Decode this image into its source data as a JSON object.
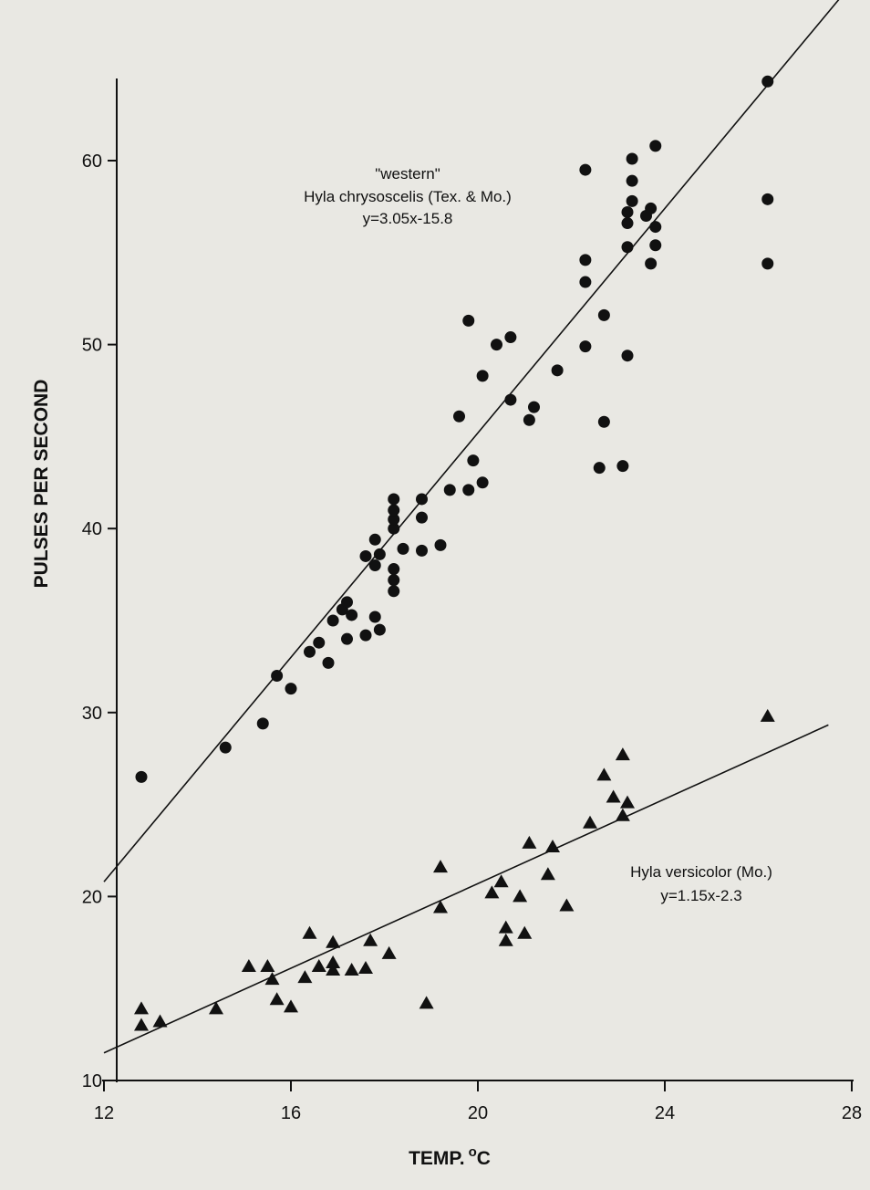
{
  "chart_data": {
    "type": "scatter",
    "title": "",
    "xlabel": "TEMP.",
    "xlabel_unit_sup": "o",
    "xlabel_unit": "C",
    "ylabel": "PULSES PER SECOND",
    "xlim": [
      12,
      28
    ],
    "ylim": [
      10,
      64
    ],
    "x_ticks": [
      12,
      16,
      20,
      24,
      28
    ],
    "y_ticks": [
      10,
      20,
      30,
      40,
      50,
      60
    ],
    "grid": false,
    "colors": {
      "marker": "#111111",
      "line": "#111111",
      "background": "#e9e8e3"
    },
    "annotations": {
      "western": {
        "line1": "\"western\"",
        "line2": "Hyla chrysoscelis  (Tex. & Mo.)",
        "line3": "y=3.05x-15.8"
      },
      "versicolor": {
        "line1": "Hyla versicolor (Mo.)",
        "line2": "y=1.15x-2.3"
      }
    },
    "series": [
      {
        "name": "Hyla chrysoscelis (Tex. & Mo.)",
        "marker": "circle",
        "regression": {
          "slope": 3.05,
          "intercept": -15.8,
          "x_range": [
            12,
            27.9
          ]
        },
        "points": [
          [
            12.8,
            26.5
          ],
          [
            14.6,
            28.1
          ],
          [
            15.4,
            29.4
          ],
          [
            15.7,
            32.0
          ],
          [
            16.0,
            31.3
          ],
          [
            16.4,
            33.3
          ],
          [
            16.6,
            33.8
          ],
          [
            16.8,
            32.7
          ],
          [
            16.9,
            35.0
          ],
          [
            17.1,
            35.6
          ],
          [
            17.2,
            36.0
          ],
          [
            17.2,
            34.0
          ],
          [
            17.3,
            35.3
          ],
          [
            17.6,
            38.5
          ],
          [
            17.6,
            34.2
          ],
          [
            17.8,
            35.2
          ],
          [
            17.8,
            38.0
          ],
          [
            17.8,
            39.4
          ],
          [
            17.9,
            34.5
          ],
          [
            17.9,
            38.6
          ],
          [
            18.2,
            37.8
          ],
          [
            18.2,
            37.2
          ],
          [
            18.2,
            36.6
          ],
          [
            18.2,
            40.0
          ],
          [
            18.2,
            40.5
          ],
          [
            18.2,
            41.0
          ],
          [
            18.2,
            41.6
          ],
          [
            18.4,
            38.9
          ],
          [
            18.8,
            38.8
          ],
          [
            18.8,
            40.6
          ],
          [
            18.8,
            41.6
          ],
          [
            19.2,
            39.1
          ],
          [
            19.4,
            42.1
          ],
          [
            19.6,
            46.1
          ],
          [
            19.8,
            51.3
          ],
          [
            19.8,
            42.1
          ],
          [
            19.9,
            43.7
          ],
          [
            20.1,
            48.3
          ],
          [
            20.1,
            42.5
          ],
          [
            20.4,
            50.0
          ],
          [
            20.7,
            50.4
          ],
          [
            20.7,
            47.0
          ],
          [
            21.1,
            45.9
          ],
          [
            21.2,
            46.6
          ],
          [
            21.7,
            48.6
          ],
          [
            22.3,
            59.5
          ],
          [
            22.3,
            54.6
          ],
          [
            22.3,
            53.4
          ],
          [
            22.3,
            49.9
          ],
          [
            22.6,
            43.3
          ],
          [
            22.7,
            51.6
          ],
          [
            22.7,
            45.8
          ],
          [
            23.1,
            43.4
          ],
          [
            23.2,
            49.4
          ],
          [
            23.2,
            55.3
          ],
          [
            23.2,
            56.6
          ],
          [
            23.2,
            57.2
          ],
          [
            23.3,
            57.8
          ],
          [
            23.3,
            58.9
          ],
          [
            23.3,
            60.1
          ],
          [
            23.6,
            57.0
          ],
          [
            23.7,
            57.4
          ],
          [
            23.7,
            54.4
          ],
          [
            23.8,
            55.4
          ],
          [
            23.8,
            56.4
          ],
          [
            23.8,
            60.8
          ],
          [
            26.2,
            64.3
          ],
          [
            26.2,
            57.9
          ],
          [
            26.2,
            54.4
          ]
        ]
      },
      {
        "name": "Hyla versicolor (Mo.)",
        "marker": "triangle",
        "regression": {
          "slope": 1.15,
          "intercept": -2.3,
          "x_range": [
            12,
            27.5
          ]
        },
        "points": [
          [
            12.8,
            13.0
          ],
          [
            12.8,
            13.9
          ],
          [
            13.2,
            13.2
          ],
          [
            14.4,
            13.9
          ],
          [
            15.1,
            16.2
          ],
          [
            15.5,
            16.2
          ],
          [
            15.6,
            15.5
          ],
          [
            15.7,
            14.4
          ],
          [
            16.0,
            14.0
          ],
          [
            16.3,
            15.6
          ],
          [
            16.4,
            18.0
          ],
          [
            16.6,
            16.2
          ],
          [
            16.9,
            16.0
          ],
          [
            16.9,
            16.4
          ],
          [
            16.9,
            17.5
          ],
          [
            17.3,
            16.0
          ],
          [
            17.6,
            16.1
          ],
          [
            17.7,
            17.6
          ],
          [
            18.1,
            16.9
          ],
          [
            18.9,
            14.2
          ],
          [
            19.2,
            19.4
          ],
          [
            19.2,
            21.6
          ],
          [
            20.3,
            20.2
          ],
          [
            20.5,
            20.8
          ],
          [
            20.6,
            18.3
          ],
          [
            20.6,
            17.6
          ],
          [
            20.9,
            20.0
          ],
          [
            21.0,
            18.0
          ],
          [
            21.1,
            22.9
          ],
          [
            21.5,
            21.2
          ],
          [
            21.6,
            22.7
          ],
          [
            21.9,
            19.5
          ],
          [
            22.4,
            24.0
          ],
          [
            22.7,
            26.6
          ],
          [
            22.9,
            25.4
          ],
          [
            23.1,
            27.7
          ],
          [
            23.1,
            24.4
          ],
          [
            23.2,
            25.1
          ],
          [
            26.2,
            29.8
          ]
        ]
      }
    ]
  }
}
